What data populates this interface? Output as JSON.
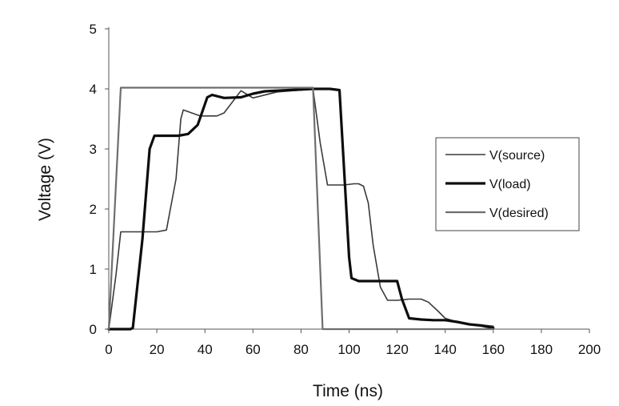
{
  "chart_data": {
    "type": "line",
    "title": "",
    "xlabel": "Time (ns)",
    "ylabel": "Voltage (V)",
    "xlim": [
      0,
      200
    ],
    "ylim": [
      0,
      5
    ],
    "xticks": [
      "0",
      "20",
      "40",
      "60",
      "80",
      "100",
      "120",
      "140",
      "160",
      "180",
      "200"
    ],
    "yticks": [
      "0",
      "1",
      "2",
      "3",
      "4",
      "5"
    ],
    "grid": false,
    "legend_position": "right",
    "series": [
      {
        "name": "V(source)",
        "color": "#3a3a3a",
        "x": [
          0,
          3,
          5,
          10,
          20,
          24,
          28,
          30,
          31,
          38,
          45,
          48,
          55,
          60,
          70,
          80,
          85,
          88,
          91,
          98,
          102,
          104,
          106,
          108,
          110,
          113,
          116,
          120,
          125,
          130,
          133,
          137,
          140,
          145,
          150,
          155,
          160
        ],
        "y": [
          0,
          0.9,
          1.62,
          1.62,
          1.62,
          1.65,
          2.5,
          3.5,
          3.65,
          3.55,
          3.55,
          3.6,
          3.97,
          3.85,
          3.95,
          3.98,
          4.0,
          3.1,
          2.4,
          2.4,
          2.42,
          2.42,
          2.38,
          2.1,
          1.4,
          0.7,
          0.48,
          0.48,
          0.5,
          0.5,
          0.45,
          0.3,
          0.18,
          0.12,
          0.08,
          0.07,
          0.05
        ]
      },
      {
        "name": "V(load)",
        "color": "#0d0d0d",
        "x": [
          0,
          9,
          10,
          14,
          17,
          19,
          24,
          29,
          33,
          37,
          41,
          43,
          48,
          55,
          60,
          65,
          75,
          85,
          92,
          96,
          98,
          100,
          101,
          104,
          110,
          118,
          120,
          122,
          125,
          130,
          135,
          140,
          145,
          150,
          155,
          160
        ],
        "y": [
          0,
          0,
          0.02,
          1.5,
          3.0,
          3.22,
          3.22,
          3.22,
          3.25,
          3.4,
          3.86,
          3.9,
          3.85,
          3.86,
          3.92,
          3.96,
          3.98,
          4.0,
          4.0,
          3.98,
          2.6,
          1.2,
          0.85,
          0.8,
          0.8,
          0.8,
          0.8,
          0.5,
          0.18,
          0.16,
          0.15,
          0.15,
          0.12,
          0.08,
          0.06,
          0.02
        ]
      },
      {
        "name": "V(desired)",
        "color": "#6e6e6e",
        "x": [
          0,
          5,
          85,
          89,
          160
        ],
        "y": [
          0,
          4.02,
          4.02,
          0,
          0
        ]
      }
    ]
  }
}
